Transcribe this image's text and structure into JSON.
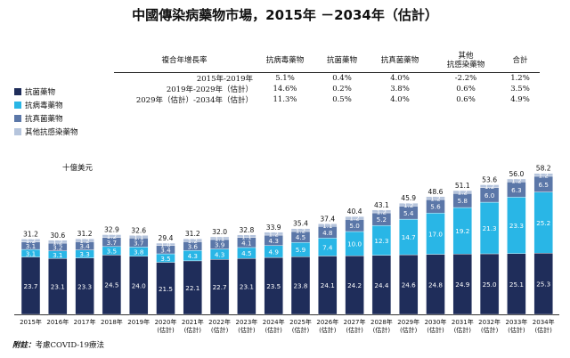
{
  "title": "中國傳染病藥物市場，2015年 －2034年（估計）",
  "unit_label": "十億美元",
  "footnote": {
    "label": "附註：",
    "text": "考慮COVID-19療法"
  },
  "cagr_table": {
    "headers": [
      "複合年增長率",
      "抗病毒藥物",
      "抗菌藥物",
      "抗真菌藥物",
      "其他\n抗感染藥物",
      "合計"
    ],
    "rows": [
      [
        "2015年-2019年",
        "5.1%",
        "0.4%",
        "4.0%",
        "-2.2%",
        "1.2%"
      ],
      [
        "2019年-2029年（估計）",
        "14.6%",
        "0.2%",
        "3.8%",
        "0.6%",
        "3.5%"
      ],
      [
        "2029年（估計）-2034年（估計）",
        "11.3%",
        "0.5%",
        "4.0%",
        "0.6%",
        "4.9%"
      ]
    ]
  },
  "colors": {
    "antibacterial": "#1f2d5a",
    "antiviral": "#29b6e6",
    "antifungal": "#5b77a8",
    "other": "#b5c4dc",
    "bg": "#ffffff"
  },
  "chart_data": {
    "type": "bar",
    "stacked": true,
    "categories": [
      "2015年",
      "2016年",
      "2017年",
      "2018年",
      "2019年",
      "2020年\n(估計)",
      "2021年\n(估計)",
      "2022年\n(估計)",
      "2023年\n(估計)",
      "2024年\n(估計)",
      "2025年\n(估計)",
      "2026年\n(估計)",
      "2027年\n(估計)",
      "2028年\n(估計)",
      "2029年\n(估計)",
      "2030年\n(估計)",
      "2031年\n(估計)",
      "2032年\n(估計)",
      "2033年\n(估計)",
      "2034年\n(估計)"
    ],
    "series": [
      {
        "name": "抗菌藥物",
        "color": "#1f2d5a",
        "values": [
          23.7,
          23.1,
          23.3,
          24.5,
          24.0,
          21.5,
          22.1,
          22.7,
          23.1,
          23.5,
          23.8,
          24.1,
          24.2,
          24.4,
          24.6,
          24.8,
          24.9,
          25.0,
          25.1,
          25.3
        ]
      },
      {
        "name": "抗病毒藥物",
        "color": "#29b6e6",
        "values": [
          3.1,
          3.1,
          3.3,
          3.5,
          3.8,
          3.5,
          4.3,
          4.3,
          4.5,
          4.9,
          5.9,
          7.4,
          10.0,
          12.3,
          14.7,
          17.0,
          19.2,
          21.3,
          23.3,
          25.2
        ]
      },
      {
        "name": "抗真菌藥物",
        "color": "#5b77a8",
        "values": [
          3.1,
          3.2,
          3.4,
          3.7,
          3.7,
          3.4,
          3.6,
          3.9,
          4.1,
          4.3,
          4.5,
          4.8,
          5.0,
          5.2,
          5.4,
          5.6,
          5.8,
          6.0,
          6.3,
          6.5
        ]
      },
      {
        "name": "其他抗感染藥物",
        "color": "#b5c4dc",
        "values": [
          1.2,
          1.2,
          1.2,
          1.2,
          1.1,
          1.0,
          1.2,
          1.1,
          1.1,
          1.2,
          1.2,
          1.1,
          1.2,
          1.2,
          1.2,
          1.2,
          1.2,
          1.2,
          1.2,
          1.2
        ]
      }
    ],
    "totals": [
      31.2,
      30.6,
      31.2,
      32.9,
      32.6,
      29.4,
      31.2,
      32.0,
      32.8,
      33.9,
      35.4,
      37.4,
      40.4,
      43.1,
      45.9,
      48.6,
      51.1,
      53.6,
      56.0,
      58.2
    ],
    "ylim": [
      0,
      60
    ],
    "legend_position": "left"
  }
}
